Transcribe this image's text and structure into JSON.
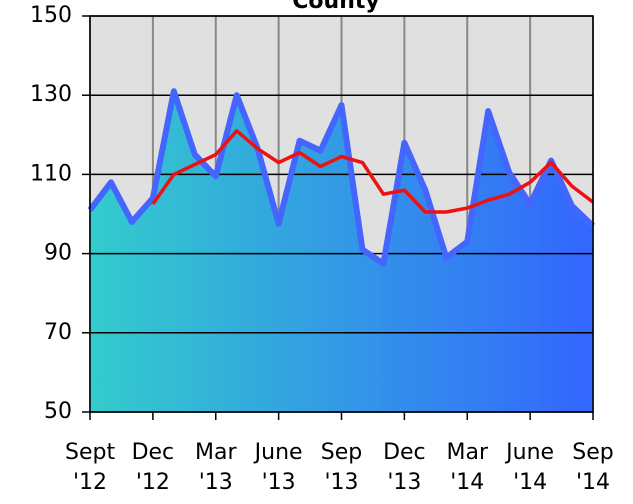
{
  "chart_data": {
    "type": "line",
    "title": "County",
    "categories": [
      "Sept '12",
      null,
      null,
      "Dec '12",
      null,
      null,
      "Mar '13",
      null,
      null,
      "June '13",
      null,
      null,
      "Sep '13",
      null,
      null,
      "Dec '13",
      null,
      null,
      "Mar '14",
      null,
      null,
      "June '14",
      null,
      null,
      "Sep '14"
    ],
    "series": [
      {
        "color": "#4466ff",
        "area_colors": [
          "#33cccc",
          "#3366ff"
        ],
        "values": [
          101,
          108,
          98,
          104,
          131,
          115,
          109.5,
          130,
          116.5,
          97.5,
          118.5,
          116,
          127.5,
          91,
          87.5,
          118,
          106,
          89,
          93,
          126,
          110.5,
          102.5,
          113.5,
          102,
          97
        ]
      },
      {
        "color": "#ee1111",
        "values": [
          null,
          null,
          null,
          102.5,
          110,
          112.5,
          115,
          121,
          116.5,
          113,
          115.5,
          112,
          114.5,
          113,
          105,
          106,
          100.5,
          100.5,
          101.5,
          103.5,
          105,
          108,
          113,
          107,
          103
        ]
      }
    ],
    "ylim": [
      50,
      150
    ],
    "yticks": [
      50,
      70,
      90,
      110,
      130,
      150
    ],
    "grid": true
  }
}
